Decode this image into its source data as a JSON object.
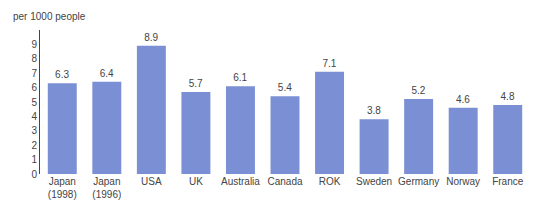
{
  "chart_data": {
    "type": "bar",
    "ylabel": "per 1000 people",
    "categories": [
      "Japan\n(1998)",
      "Japan\n(1996)",
      "USA",
      "UK",
      "Australia",
      "Canada",
      "ROK",
      "Sweden",
      "Germany",
      "Norway",
      "France"
    ],
    "values": [
      6.3,
      6.4,
      8.9,
      5.7,
      6.1,
      5.4,
      7.1,
      3.8,
      5.2,
      4.6,
      4.8
    ],
    "color": "#7b8fd4",
    "ylim": [
      0,
      10
    ],
    "yticks": [
      0,
      1,
      2,
      3,
      4,
      5,
      6,
      7,
      8,
      9
    ],
    "grid": false,
    "data_labels": true
  }
}
